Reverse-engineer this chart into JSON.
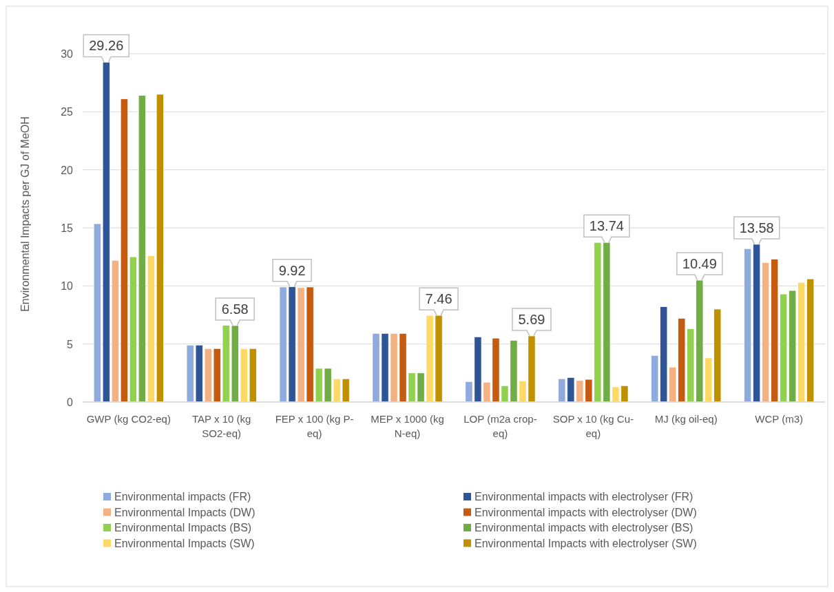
{
  "chart_data": {
    "type": "bar",
    "ylabel": "Environmental Impacts per GJ of MeOH",
    "categories": [
      "GWP (kg CO2-eq)",
      "TAP x 10 (kg SO2-eq)",
      "FEP x 100 (kg P-eq)",
      "MEP x 1000 (kg N-eq)",
      "LOP (m2a crop-eq)",
      "SOP x 10 (kg Cu-eq)",
      "MJ (kg oil-eq)",
      "WCP (m3)"
    ],
    "series": [
      {
        "name": "Environmental impacts (FR)",
        "color": "#8faadc",
        "values": [
          15.35,
          4.9,
          9.9,
          5.9,
          1.75,
          2.0,
          4.0,
          13.2
        ]
      },
      {
        "name": "Environmental impacts with electrolyser (FR)",
        "color": "#2f5597",
        "values": [
          29.26,
          4.9,
          9.92,
          5.9,
          5.6,
          2.1,
          8.2,
          13.58
        ]
      },
      {
        "name": "Environmental Impacts (DW)",
        "color": "#f4b183",
        "values": [
          12.2,
          4.6,
          9.85,
          5.9,
          1.7,
          1.85,
          3.0,
          12.0
        ]
      },
      {
        "name": "Environmental impacts with electrolyser (DW)",
        "color": "#c55a11",
        "values": [
          26.1,
          4.6,
          9.9,
          5.9,
          5.5,
          1.95,
          7.2,
          12.3
        ]
      },
      {
        "name": "Environmental Impacts (BS)",
        "color": "#92d050",
        "values": [
          12.5,
          6.6,
          2.9,
          2.5,
          1.4,
          13.74,
          6.3,
          9.3
        ]
      },
      {
        "name": "Environmental impacts with electrolyser (BS)",
        "color": "#70ad47",
        "values": [
          26.4,
          6.58,
          2.9,
          2.5,
          5.3,
          13.74,
          10.49,
          9.6
        ]
      },
      {
        "name": "Environmental Impacts (SW)",
        "color": "#ffd966",
        "values": [
          12.6,
          4.6,
          2.0,
          7.46,
          1.8,
          1.3,
          3.8,
          10.3
        ]
      },
      {
        "name": "Environmental Impacts with electrolyser (SW)",
        "color": "#bf9000",
        "values": [
          26.5,
          4.6,
          2.0,
          7.46,
          5.69,
          1.4,
          8.0,
          10.6
        ]
      }
    ],
    "ylim": [
      0,
      30
    ],
    "yticks": [
      0,
      5,
      10,
      15,
      20,
      25,
      30
    ],
    "grid": "y",
    "legend": "bottom",
    "annotations": [
      "29.26",
      {
        "text": "6.58",
        "x": "TAP x 10 (kg SO2-eq)",
        "y": 6.58
      },
      {
        "text": "9.92",
        "x": "FEP x 100 (kg P-eq)",
        "y": 9.92
      },
      "7.46",
      {
        "text": "5.69",
        "x": "LOP (m2a crop-eq)",
        "y": 5.69
      },
      {
        "text": "13.74",
        "x": "SOP x 10 (kg Cu-eq)",
        "y": 13.74
      },
      "10.49",
      "13.58"
    ]
  }
}
